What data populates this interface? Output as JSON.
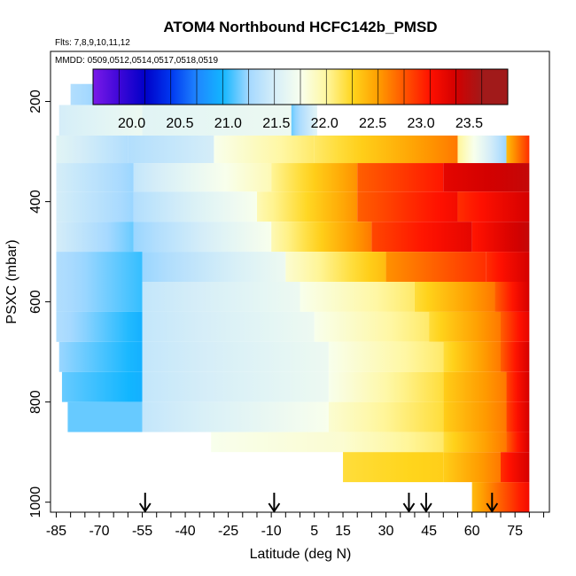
{
  "chart_data": {
    "type": "heatmap",
    "title": "ATOM4 Northbound HCFC142b_PMSD",
    "flights_note": "Flts: 7,8,9,10,11,12",
    "mmdd_note": "MMDD: 0509,0512,0514,0517,0518,0519",
    "xlabel": "Latitude (deg N)",
    "ylabel": "PSXC (mbar)",
    "xlim": [
      -87,
      87
    ],
    "ylim": [
      1020,
      100
    ],
    "y_inverted": true,
    "grid": false,
    "x_tick_labels": [
      "-85",
      "-70",
      "-55",
      "-40",
      "-25",
      "-10",
      "5",
      "15",
      "30",
      "45",
      "60",
      "75"
    ],
    "y_tick_labels": [
      "200",
      "400",
      "600",
      "800",
      "1000"
    ],
    "colorbar": {
      "min": 19.6,
      "max": 23.9,
      "tick_labels": [
        "20.0",
        "20.5",
        "21.0",
        "21.5",
        "22.0",
        "22.5",
        "23.0",
        "23.5"
      ],
      "colors": [
        "#7a1ae8",
        "#3e07d8",
        "#0000c8",
        "#0038f0",
        "#1f86ff",
        "#12b6ff",
        "#a4d8ff",
        "#d6eef8",
        "#f8ffee",
        "#fff7a0",
        "#ffd51c",
        "#ff9d00",
        "#ff5500",
        "#ff1000",
        "#d20000",
        "#a11a1a"
      ]
    },
    "profile_arrows_latitude": [
      -54,
      -9,
      38,
      44,
      67
    ],
    "bands": [
      {
        "p_top": 165,
        "p_bot": 207,
        "segments": [
          {
            "lat": [
              -80,
              -63
            ],
            "values": [
              21.4,
              21.2
            ]
          }
        ]
      },
      {
        "p_top": 207,
        "p_bot": 268,
        "segments": [
          {
            "lat": [
              -84,
              -55
            ],
            "values": [
              21.6,
              21.8
            ]
          },
          {
            "lat": [
              -55,
              -3
            ],
            "values": [
              21.7,
              21.8
            ]
          },
          {
            "lat": [
              -3,
              6
            ],
            "values": [
              21.2,
              21.7
            ]
          }
        ]
      },
      {
        "p_top": 268,
        "p_bot": 323,
        "segments": [
          {
            "lat": [
              -85,
              -60
            ],
            "values": [
              21.7,
              21.4
            ]
          },
          {
            "lat": [
              -60,
              -30
            ],
            "values": [
              21.4,
              21.6
            ]
          },
          {
            "lat": [
              -30,
              5
            ],
            "values": [
              21.9,
              22.3
            ]
          },
          {
            "lat": [
              5,
              55
            ],
            "values": [
              22.3,
              22.9
            ]
          },
          {
            "lat": [
              55,
              72
            ],
            "values": [
              22.2,
              21.3
            ]
          },
          {
            "lat": [
              72,
              80
            ],
            "values": [
              22.6,
              23.2
            ]
          }
        ]
      },
      {
        "p_top": 323,
        "p_bot": 380,
        "segments": [
          {
            "lat": [
              -85,
              -58
            ],
            "values": [
              21.6,
              21.3
            ]
          },
          {
            "lat": [
              -58,
              -10
            ],
            "values": [
              21.5,
              22.1
            ]
          },
          {
            "lat": [
              -10,
              20
            ],
            "values": [
              22.2,
              22.8
            ]
          },
          {
            "lat": [
              20,
              50
            ],
            "values": [
              23.0,
              23.3
            ]
          },
          {
            "lat": [
              50,
              80
            ],
            "values": [
              23.5,
              23.7
            ]
          }
        ]
      },
      {
        "p_top": 380,
        "p_bot": 440,
        "segments": [
          {
            "lat": [
              -85,
              -58
            ],
            "values": [
              21.6,
              21.3
            ]
          },
          {
            "lat": [
              -58,
              -15
            ],
            "values": [
              21.4,
              21.9
            ]
          },
          {
            "lat": [
              -15,
              20
            ],
            "values": [
              22.1,
              22.8
            ]
          },
          {
            "lat": [
              20,
              55
            ],
            "values": [
              23.0,
              23.4
            ]
          },
          {
            "lat": [
              55,
              80
            ],
            "values": [
              23.2,
              23.6
            ]
          }
        ]
      },
      {
        "p_top": 440,
        "p_bot": 500,
        "segments": [
          {
            "lat": [
              -85,
              -58
            ],
            "values": [
              21.6,
              21.2
            ]
          },
          {
            "lat": [
              -58,
              -10
            ],
            "values": [
              21.3,
              21.9
            ]
          },
          {
            "lat": [
              -10,
              25
            ],
            "values": [
              22.1,
              22.9
            ]
          },
          {
            "lat": [
              25,
              60
            ],
            "values": [
              23.1,
              23.5
            ]
          },
          {
            "lat": [
              60,
              80
            ],
            "values": [
              23.3,
              23.7
            ]
          }
        ]
      },
      {
        "p_top": 500,
        "p_bot": 560,
        "segments": [
          {
            "lat": [
              -85,
              -55
            ],
            "values": [
              21.4,
              21.1
            ]
          },
          {
            "lat": [
              -55,
              -5
            ],
            "values": [
              21.3,
              21.8
            ]
          },
          {
            "lat": [
              -5,
              30
            ],
            "values": [
              22.0,
              22.6
            ]
          },
          {
            "lat": [
              30,
              65
            ],
            "values": [
              22.8,
              23.2
            ]
          },
          {
            "lat": [
              65,
              80
            ],
            "values": [
              23.2,
              23.6
            ]
          }
        ]
      },
      {
        "p_top": 560,
        "p_bot": 620,
        "segments": [
          {
            "lat": [
              -85,
              -55
            ],
            "values": [
              21.4,
              21.1
            ]
          },
          {
            "lat": [
              -55,
              0
            ],
            "values": [
              21.5,
              21.8
            ]
          },
          {
            "lat": [
              0,
              40
            ],
            "values": [
              21.9,
              22.3
            ]
          },
          {
            "lat": [
              40,
              68
            ],
            "values": [
              22.4,
              22.9
            ]
          },
          {
            "lat": [
              68,
              80
            ],
            "values": [
              23.0,
              23.6
            ]
          }
        ]
      },
      {
        "p_top": 620,
        "p_bot": 680,
        "segments": [
          {
            "lat": [
              -85,
              -55
            ],
            "values": [
              21.4,
              21.0
            ]
          },
          {
            "lat": [
              -55,
              5
            ],
            "values": [
              21.5,
              21.8
            ]
          },
          {
            "lat": [
              5,
              45
            ],
            "values": [
              21.9,
              22.3
            ]
          },
          {
            "lat": [
              45,
              70
            ],
            "values": [
              22.4,
              22.9
            ]
          },
          {
            "lat": [
              70,
              80
            ],
            "values": [
              23.0,
              23.5
            ]
          }
        ]
      },
      {
        "p_top": 680,
        "p_bot": 740,
        "segments": [
          {
            "lat": [
              -84,
              -55
            ],
            "values": [
              21.3,
              21.0
            ]
          },
          {
            "lat": [
              -55,
              10
            ],
            "values": [
              21.5,
              21.8
            ]
          },
          {
            "lat": [
              10,
              50
            ],
            "values": [
              21.9,
              22.3
            ]
          },
          {
            "lat": [
              50,
              70
            ],
            "values": [
              22.4,
              22.9
            ]
          },
          {
            "lat": [
              70,
              80
            ],
            "values": [
              23.0,
              23.6
            ]
          }
        ]
      },
      {
        "p_top": 740,
        "p_bot": 800,
        "segments": [
          {
            "lat": [
              -83,
              -55
            ],
            "values": [
              21.2,
              21.0
            ]
          },
          {
            "lat": [
              -55,
              10
            ],
            "values": [
              21.5,
              21.8
            ]
          },
          {
            "lat": [
              10,
              50
            ],
            "values": [
              21.9,
              22.4
            ]
          },
          {
            "lat": [
              50,
              72
            ],
            "values": [
              22.5,
              22.9
            ]
          },
          {
            "lat": [
              72,
              80
            ],
            "values": [
              23.1,
              23.6
            ]
          }
        ]
      },
      {
        "p_top": 800,
        "p_bot": 860,
        "segments": [
          {
            "lat": [
              -81,
              -55
            ],
            "values": [
              21.2,
              21.2
            ]
          },
          {
            "lat": [
              -55,
              10
            ],
            "values": [
              21.5,
              21.9
            ]
          },
          {
            "lat": [
              10,
              50
            ],
            "values": [
              22.0,
              22.4
            ]
          },
          {
            "lat": [
              50,
              72
            ],
            "values": [
              22.5,
              22.9
            ]
          },
          {
            "lat": [
              72,
              80
            ],
            "values": [
              23.1,
              23.6
            ]
          }
        ]
      },
      {
        "p_top": 860,
        "p_bot": 900,
        "segments": [
          {
            "lat": [
              -31,
              15
            ],
            "values": [
              21.9,
              22.0
            ]
          },
          {
            "lat": [
              15,
              50
            ],
            "values": [
              22.0,
              22.3
            ]
          },
          {
            "lat": [
              50,
              72
            ],
            "values": [
              22.4,
              22.9
            ]
          },
          {
            "lat": [
              72,
              80
            ],
            "values": [
              23.0,
              23.6
            ]
          }
        ]
      },
      {
        "p_top": 900,
        "p_bot": 960,
        "segments": [
          {
            "lat": [
              15,
              50
            ],
            "values": [
              22.4,
              22.5
            ]
          },
          {
            "lat": [
              50,
              70
            ],
            "values": [
              22.5,
              22.9
            ]
          },
          {
            "lat": [
              70,
              80
            ],
            "values": [
              23.2,
              23.6
            ]
          }
        ]
      },
      {
        "p_top": 960,
        "p_bot": 1020,
        "segments": [
          {
            "lat": [
              60,
              80
            ],
            "values": [
              22.6,
              23.4
            ]
          }
        ]
      }
    ]
  }
}
